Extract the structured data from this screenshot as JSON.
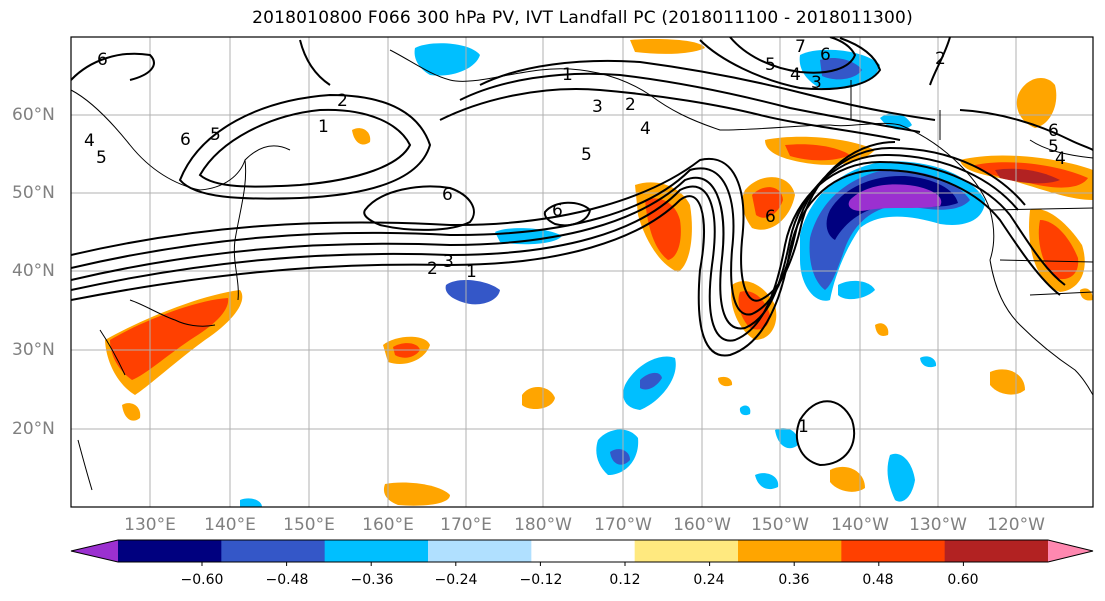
{
  "title": "2018010800 F066 300 hPa PV, IVT Landfall PC (2018011100 - 2018011300)",
  "map": {
    "lon_labels": [
      "130°E",
      "140°E",
      "150°E",
      "160°E",
      "170°E",
      "180°W",
      "170°W",
      "160°W",
      "150°W",
      "140°W",
      "130°W",
      "120°W"
    ],
    "lat_labels": [
      "60°N",
      "50°N",
      "40°N",
      "30°N",
      "20°N"
    ],
    "contour_labels": [
      {
        "text": "6"
      },
      {
        "text": "5"
      },
      {
        "text": "2"
      },
      {
        "text": "1"
      },
      {
        "text": "1"
      },
      {
        "text": "3"
      },
      {
        "text": "2"
      },
      {
        "text": "4"
      },
      {
        "text": "5"
      },
      {
        "text": "6"
      },
      {
        "text": "6"
      },
      {
        "text": "3"
      },
      {
        "text": "2"
      },
      {
        "text": "1"
      },
      {
        "text": "7"
      },
      {
        "text": "6"
      },
      {
        "text": "5"
      },
      {
        "text": "4"
      },
      {
        "text": "3"
      },
      {
        "text": "2"
      },
      {
        "text": "6"
      },
      {
        "text": "5"
      },
      {
        "text": "4"
      },
      {
        "text": "6"
      },
      {
        "text": "1"
      },
      {
        "text": "4"
      },
      {
        "text": "5"
      },
      {
        "text": "6"
      }
    ]
  },
  "colorbar": {
    "colors": [
      "#9b30d0",
      "#00007f",
      "#3457c8",
      "#00bfff",
      "#b0e0ff",
      "#ffffff",
      "#ffe97f",
      "#ffa500",
      "#ff4000",
      "#b22222",
      "#ff88b0"
    ],
    "tick_labels": [
      "−0.60",
      "−0.48",
      "−0.36",
      "−0.24",
      "−0.12",
      "0.12",
      "0.24",
      "0.36",
      "0.48",
      "0.60"
    ]
  }
}
